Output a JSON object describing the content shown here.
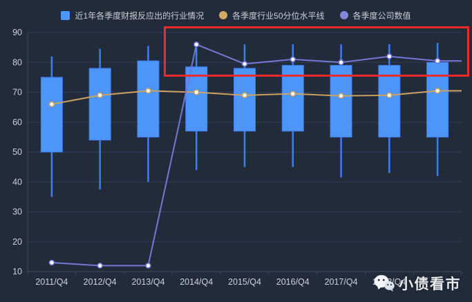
{
  "colors": {
    "background": "#222b3a",
    "gridline": "#303d55",
    "axis_line": "#3c4960",
    "axis_text": "#cdd2da",
    "box_fill": "#4d96f8",
    "box_border": "#3e7ef2",
    "median_line": "#cda15f",
    "company_line": "#7378d4",
    "annotation_red": "#ec2a2a",
    "marker_fill": "#ffffff"
  },
  "legend": {
    "items": [
      {
        "label": "近1年各季度财报反应出的行业情况",
        "shape": "square",
        "color": "#4d96f8"
      },
      {
        "label": "各季度行业50分位水平线",
        "shape": "circle",
        "color": "#d4a861"
      },
      {
        "label": "各季度公司数值",
        "shape": "circle",
        "color": "#8488dd"
      }
    ]
  },
  "chart_data": {
    "type": "boxplot+line",
    "title": "",
    "xlabel": "",
    "ylabel": "",
    "ylim": [
      10,
      90
    ],
    "ytick_step": 10,
    "grid": true,
    "legend_position": "top-center",
    "categories": [
      "2011/Q4",
      "2012/Q4",
      "2013/Q4",
      "2014/Q4",
      "2015/Q4",
      "2016/Q4",
      "2017/Q4",
      "2018/Q4",
      ""
    ],
    "note_last_category": "label hidden behind watermark",
    "series": [
      {
        "name": "近1年各季度财报反应出的行业情况",
        "type": "boxplot",
        "color": "#4d96f8",
        "border_color": "#3e7ef2",
        "values_min_q1_q3_max": [
          [
            35,
            50,
            75,
            82
          ],
          [
            37.5,
            54,
            78,
            84.5
          ],
          [
            40,
            55,
            80.5,
            85.5
          ],
          [
            44,
            57,
            78.5,
            85
          ],
          [
            45,
            57,
            78,
            86
          ],
          [
            45,
            57,
            79,
            86
          ],
          [
            41.5,
            55,
            79,
            86
          ],
          [
            43,
            55,
            79,
            86
          ],
          [
            42,
            55,
            80,
            86.5
          ]
        ]
      },
      {
        "name": "各季度行业50分位水平线",
        "type": "line",
        "color": "#cda15f",
        "extend_right": true,
        "values": [
          66,
          69,
          70.5,
          70,
          69,
          69.5,
          68.8,
          69,
          70.5
        ]
      },
      {
        "name": "各季度公司数值",
        "type": "line",
        "color": "#7378d4",
        "extend_right": true,
        "values": [
          13,
          12,
          12,
          86,
          79.5,
          81,
          80,
          82,
          80.5
        ]
      }
    ]
  },
  "annotation": {
    "type": "rectangle",
    "color": "#ec2a2a",
    "purpose": "highlights recent quarters where company value line sits near top of industry range"
  },
  "watermark": {
    "icon": "wechat-icon",
    "text": "小债看市"
  }
}
